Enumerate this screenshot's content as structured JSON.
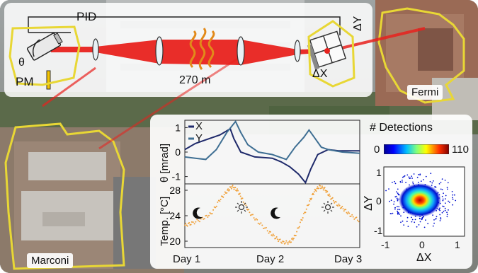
{
  "setup": {
    "pid_label": "PID",
    "pm_label": "PM",
    "theta_label": "θ",
    "distance_label": "270 m",
    "dx_label": "ΔX",
    "dy_label": "ΔY"
  },
  "buildings": {
    "left_label": "Marconi",
    "right_label": "Fermi"
  },
  "colors": {
    "beam": "#e8221e",
    "building_outline": "#e8d735",
    "x_series": "#1f2a6b",
    "y_series": "#3f6f93",
    "temperature": "#f0a038"
  },
  "chart_data": [
    {
      "type": "line",
      "ylabel": "θ [mrad]",
      "ylim": [
        -1.3,
        1.3
      ],
      "yticks": [
        "1",
        "0",
        "-1"
      ],
      "series": [
        {
          "name": "X",
          "points": [
            [
              0,
              0.1
            ],
            [
              0.06,
              0.35
            ],
            [
              0.12,
              0.5
            ],
            [
              0.2,
              0.7
            ],
            [
              0.26,
              0.95
            ],
            [
              0.28,
              0.55
            ],
            [
              0.32,
              0.0
            ],
            [
              0.4,
              -0.2
            ],
            [
              0.5,
              -0.25
            ],
            [
              0.55,
              -0.4
            ],
            [
              0.6,
              -0.6
            ],
            [
              0.65,
              -0.9
            ],
            [
              0.69,
              -1.25
            ],
            [
              0.72,
              -0.7
            ],
            [
              0.76,
              -0.1
            ],
            [
              0.82,
              0.1
            ],
            [
              0.88,
              0.05
            ],
            [
              1.0,
              0.05
            ]
          ]
        },
        {
          "name": "Y",
          "points": [
            [
              0,
              -0.2
            ],
            [
              0.06,
              -0.25
            ],
            [
              0.12,
              -0.3
            ],
            [
              0.18,
              0.1
            ],
            [
              0.24,
              0.8
            ],
            [
              0.29,
              1.25
            ],
            [
              0.32,
              0.8
            ],
            [
              0.36,
              0.3
            ],
            [
              0.42,
              0.0
            ],
            [
              0.5,
              -0.1
            ],
            [
              0.58,
              -0.3
            ],
            [
              0.63,
              0.2
            ],
            [
              0.68,
              0.6
            ],
            [
              0.71,
              0.9
            ],
            [
              0.74,
              0.6
            ],
            [
              0.78,
              0.2
            ],
            [
              0.82,
              0.1
            ],
            [
              0.9,
              0.0
            ],
            [
              1.0,
              -0.05
            ]
          ]
        }
      ]
    },
    {
      "type": "scatter",
      "ylabel": "Temp. [°C]",
      "ylim": [
        19,
        29
      ],
      "yticks": [
        "28",
        "24",
        "20"
      ],
      "xticks": [
        "Day 1",
        "Day 2",
        "Day 3"
      ],
      "series": [
        {
          "points": [
            [
              0,
              22.5
            ],
            [
              0.04,
              22.8
            ],
            [
              0.1,
              23.5
            ],
            [
              0.15,
              24.3
            ],
            [
              0.2,
              26.5
            ],
            [
              0.24,
              27.8
            ],
            [
              0.27,
              28.6
            ],
            [
              0.3,
              28.0
            ],
            [
              0.33,
              26.5
            ],
            [
              0.37,
              24.5
            ],
            [
              0.42,
              23.0
            ],
            [
              0.48,
              21.5
            ],
            [
              0.52,
              20.5
            ],
            [
              0.56,
              19.8
            ],
            [
              0.6,
              19.8
            ],
            [
              0.63,
              20.8
            ],
            [
              0.67,
              23.5
            ],
            [
              0.71,
              26.0
            ],
            [
              0.74,
              27.8
            ],
            [
              0.77,
              28.6
            ],
            [
              0.8,
              28.2
            ],
            [
              0.83,
              27.0
            ],
            [
              0.87,
              25.8
            ],
            [
              0.91,
              25.0
            ],
            [
              0.95,
              24.0
            ],
            [
              1.0,
              23.2
            ]
          ]
        }
      ]
    },
    {
      "type": "heatmap",
      "title": "# Detections",
      "colorbar_min": "0",
      "colorbar_max": "110",
      "xlabel": "ΔX",
      "ylabel": "ΔY",
      "xticks": [
        "-1",
        "0",
        "1"
      ],
      "yticks": [
        "1",
        "0",
        "-1"
      ],
      "center": [
        -0.2,
        0.0
      ]
    }
  ]
}
